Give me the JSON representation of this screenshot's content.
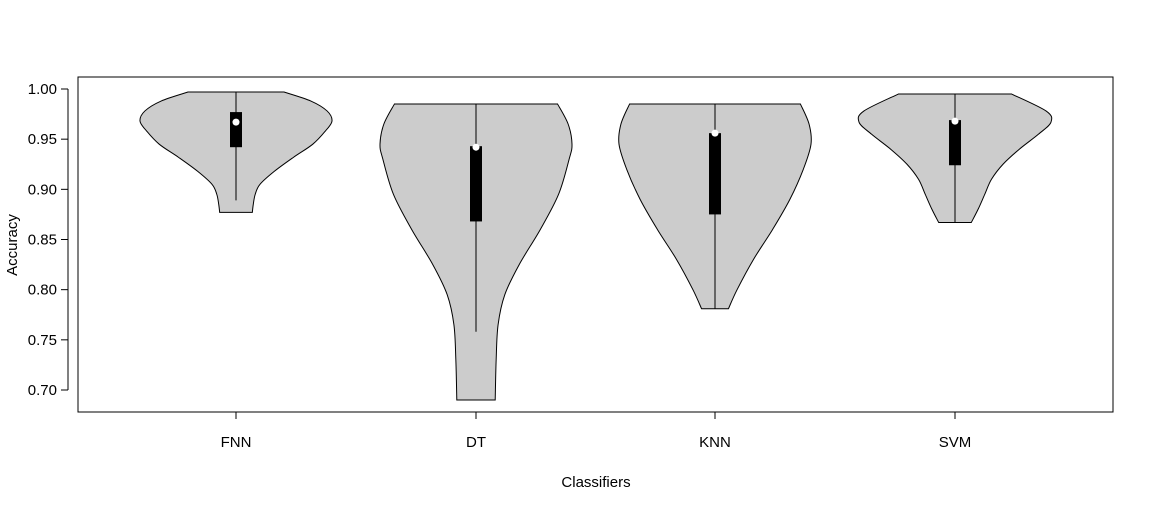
{
  "chart_data": {
    "type": "violin",
    "title": "",
    "xlabel": "Classifiers",
    "ylabel": "Accuracy",
    "ylim": [
      0.68,
      1.0
    ],
    "yticks": [
      0.7,
      0.75,
      0.8,
      0.85,
      0.9,
      0.95,
      1.0
    ],
    "ytick_labels": [
      "0.70",
      "0.75",
      "0.80",
      "0.85",
      "0.90",
      "0.95",
      "1.00"
    ],
    "categories": [
      "FNN",
      "DT",
      "KNN",
      "SVM"
    ],
    "colors": {
      "fill": "#cccccc",
      "stroke": "#000000",
      "box": "#000000",
      "median": "#ffffff"
    },
    "violins": [
      {
        "name": "FNN",
        "min": 0.877,
        "whisker_low": 0.889,
        "q1": 0.942,
        "median": 0.967,
        "q3": 0.977,
        "max": 0.997,
        "density": [
          [
            0.877,
            0.17
          ],
          [
            0.885,
            0.18
          ],
          [
            0.895,
            0.2
          ],
          [
            0.905,
            0.25
          ],
          [
            0.918,
            0.4
          ],
          [
            0.932,
            0.6
          ],
          [
            0.945,
            0.8
          ],
          [
            0.958,
            0.93
          ],
          [
            0.968,
            1.0
          ],
          [
            0.978,
            0.95
          ],
          [
            0.988,
            0.78
          ],
          [
            0.997,
            0.5
          ]
        ]
      },
      {
        "name": "DT",
        "min": 0.69,
        "whisker_low": 0.758,
        "q1": 0.868,
        "median": 0.942,
        "q3": 0.943,
        "max": 0.985,
        "density": [
          [
            0.69,
            0.2
          ],
          [
            0.73,
            0.21
          ],
          [
            0.765,
            0.23
          ],
          [
            0.795,
            0.3
          ],
          [
            0.825,
            0.45
          ],
          [
            0.86,
            0.67
          ],
          [
            0.895,
            0.86
          ],
          [
            0.93,
            0.97
          ],
          [
            0.945,
            1.0
          ],
          [
            0.965,
            0.96
          ],
          [
            0.985,
            0.85
          ]
        ]
      },
      {
        "name": "KNN",
        "min": 0.781,
        "whisker_low": 0.781,
        "q1": 0.875,
        "median": 0.956,
        "q3": 0.956,
        "max": 0.985,
        "density": [
          [
            0.781,
            0.14
          ],
          [
            0.8,
            0.23
          ],
          [
            0.83,
            0.4
          ],
          [
            0.86,
            0.6
          ],
          [
            0.89,
            0.78
          ],
          [
            0.92,
            0.92
          ],
          [
            0.945,
            1.0
          ],
          [
            0.965,
            0.98
          ],
          [
            0.985,
            0.89
          ]
        ]
      },
      {
        "name": "SVM",
        "min": 0.867,
        "whisker_low": 0.867,
        "q1": 0.924,
        "median": 0.968,
        "q3": 0.969,
        "max": 0.995,
        "density": [
          [
            0.867,
            0.17
          ],
          [
            0.88,
            0.24
          ],
          [
            0.895,
            0.31
          ],
          [
            0.91,
            0.38
          ],
          [
            0.925,
            0.5
          ],
          [
            0.94,
            0.67
          ],
          [
            0.955,
            0.87
          ],
          [
            0.967,
            1.0
          ],
          [
            0.978,
            0.95
          ],
          [
            0.995,
            0.59
          ]
        ]
      }
    ]
  }
}
